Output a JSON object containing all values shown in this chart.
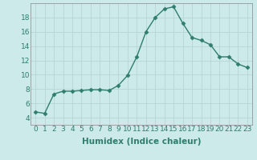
{
  "x": [
    0,
    1,
    2,
    3,
    4,
    5,
    6,
    7,
    8,
    9,
    10,
    11,
    12,
    13,
    14,
    15,
    16,
    17,
    18,
    19,
    20,
    21,
    22,
    23
  ],
  "y": [
    4.8,
    4.6,
    7.3,
    7.7,
    7.7,
    7.8,
    7.9,
    7.9,
    7.8,
    8.5,
    9.9,
    12.5,
    16.0,
    18.0,
    19.2,
    19.5,
    17.2,
    15.2,
    14.8,
    14.2,
    12.5,
    12.5,
    11.5,
    11.0
  ],
  "line_color": "#2e7d6e",
  "marker": "D",
  "marker_size": 2.5,
  "background_color": "#cceaea",
  "grid_color": "#b8d4d4",
  "xlabel": "Humidex (Indice chaleur)",
  "xlim": [
    -0.5,
    23.5
  ],
  "ylim": [
    3,
    20
  ],
  "yticks": [
    4,
    6,
    8,
    10,
    12,
    14,
    16,
    18
  ],
  "xticks": [
    0,
    1,
    2,
    3,
    4,
    5,
    6,
    7,
    8,
    9,
    10,
    11,
    12,
    13,
    14,
    15,
    16,
    17,
    18,
    19,
    20,
    21,
    22,
    23
  ],
  "xlabel_fontsize": 7.5,
  "tick_fontsize": 6.5,
  "line_width": 1.0
}
